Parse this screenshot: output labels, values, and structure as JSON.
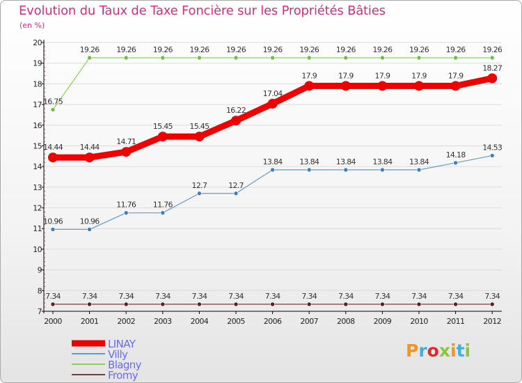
{
  "title": "Evolution du Taux de Taxe Foncière sur les Propriétés Bâties",
  "unit_label": "(en %)",
  "logo_text": "Proxiti",
  "logo_colors": [
    "#f7941d",
    "#3ab1e6",
    "#e8262d",
    "#8cc63f",
    "#f7941d",
    "#3ab1e6",
    "#8cc63f"
  ],
  "chart_data": {
    "type": "line",
    "title": "Evolution du Taux de Taxe Foncière sur les Propriétés Bâties",
    "ylabel": "(en %)",
    "xlabel": "",
    "ylim": [
      7,
      20
    ],
    "yticks": [
      "7",
      "8",
      "9",
      "10",
      "11",
      "12",
      "13",
      "14",
      "15",
      "16",
      "17",
      "18",
      "19",
      "20"
    ],
    "categories": [
      "2000",
      "2001",
      "2002",
      "2003",
      "2004",
      "2005",
      "2006",
      "2007",
      "2008",
      "2009",
      "2010",
      "2011",
      "2012"
    ],
    "legend_position": "bottom-left",
    "series": [
      {
        "name": "Blagny",
        "color": "#8cd05a",
        "dot": "#6cc040",
        "weight": "thin",
        "values": [
          16.75,
          19.26,
          19.26,
          19.26,
          19.26,
          19.26,
          19.26,
          19.26,
          19.26,
          19.26,
          19.26,
          19.26,
          19.26
        ],
        "labels": [
          "16.75",
          "19.26",
          "19.26",
          "19.26",
          "19.26",
          "19.26",
          "19.26",
          "19.26",
          "19.26",
          "19.26",
          "19.26",
          "19.26",
          "19.26"
        ]
      },
      {
        "name": "Villy",
        "color": "#6699cc",
        "dot": "#3d7fc4",
        "weight": "thin",
        "values": [
          10.96,
          10.96,
          11.76,
          11.76,
          12.7,
          12.7,
          13.84,
          13.84,
          13.84,
          13.84,
          13.84,
          14.18,
          14.53
        ],
        "labels": [
          "10.96",
          "10.96",
          "11.76",
          "11.76",
          "12.7",
          "12.7",
          "13.84",
          "13.84",
          "13.84",
          "13.84",
          "13.84",
          "14.18",
          "14.53"
        ]
      },
      {
        "name": "Fromy",
        "color": "#7a3b3b",
        "dot": "#5a1f1f",
        "weight": "thin",
        "values": [
          7.34,
          7.34,
          7.34,
          7.34,
          7.34,
          7.34,
          7.34,
          7.34,
          7.34,
          7.34,
          7.34,
          7.34,
          7.34
        ],
        "labels": [
          "7.34",
          "7.34",
          "7.34",
          "7.34",
          "7.34",
          "7.34",
          "7.34",
          "7.34",
          "7.34",
          "7.34",
          "7.34",
          "7.34",
          "7.34"
        ]
      },
      {
        "name": "LINAY",
        "color": "#ee0000",
        "dot": "#ee0000",
        "weight": "thick",
        "values": [
          14.44,
          14.44,
          14.71,
          15.45,
          15.45,
          16.22,
          17.04,
          17.9,
          17.9,
          17.9,
          17.9,
          17.9,
          18.27
        ],
        "labels": [
          "14.44",
          "14.44",
          "14.71",
          "15.45",
          "15.45",
          "16.22",
          "17.04",
          "17.9",
          "17.9",
          "17.9",
          "17.9",
          "17.9",
          "18.27"
        ]
      }
    ],
    "legend": [
      {
        "name": "LINAY",
        "color": "#ee0000",
        "text_color": "#6a6af0"
      },
      {
        "name": "Villy",
        "color": "#6699cc",
        "text_color": "#6a6af0"
      },
      {
        "name": "Blagny",
        "color": "#8cd05a",
        "text_color": "#6a6af0"
      },
      {
        "name": "Fromy",
        "color": "#7a3b3b",
        "text_color": "#6a6af0"
      }
    ]
  }
}
